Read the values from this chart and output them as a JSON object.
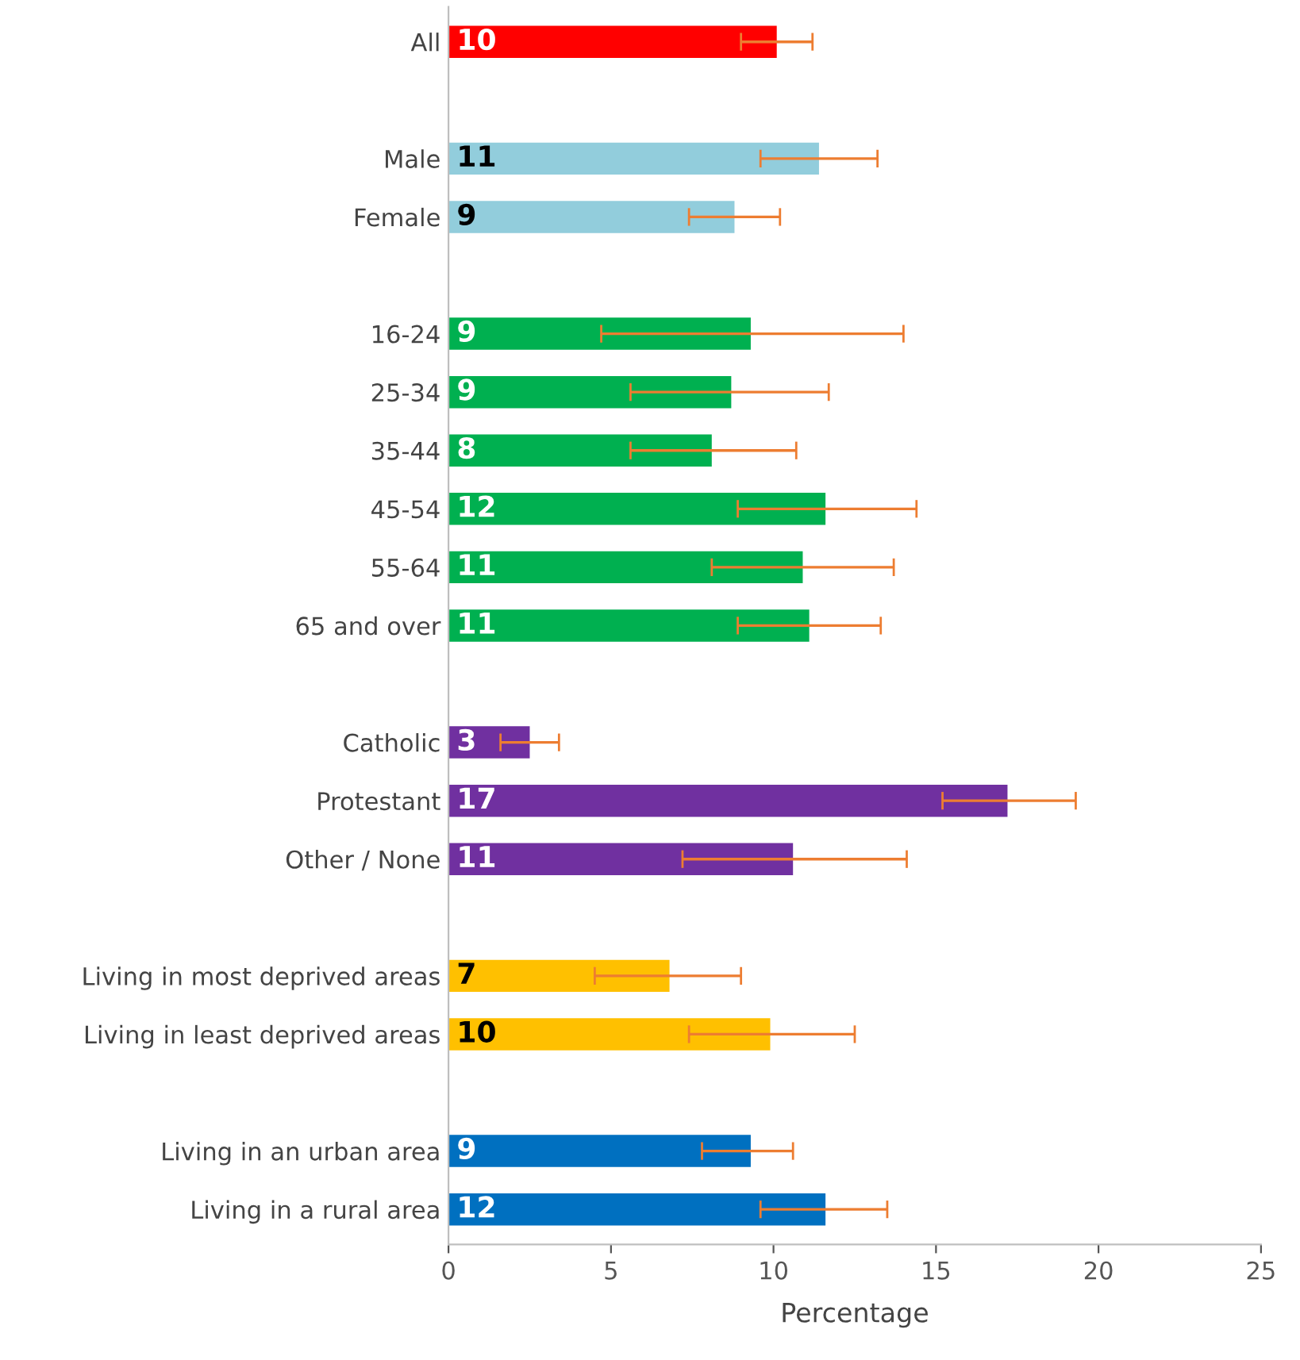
{
  "chart_data": {
    "type": "bar",
    "orientation": "horizontal",
    "xlabel": "Percentage",
    "categories": [
      "All",
      null,
      "Male",
      "Female",
      null,
      "16-24",
      "25-34",
      "35-44",
      "45-54",
      "55-64",
      "65 and over",
      null,
      "Catholic",
      "Protestant",
      "Other / None",
      null,
      "Living in most deprived areas",
      "Living in least deprived areas",
      null,
      "Living in an urban area",
      "Living in a rural area"
    ],
    "values": [
      10.1,
      null,
      11.4,
      8.8,
      null,
      9.3,
      8.7,
      8.1,
      11.6,
      10.9,
      11.1,
      null,
      2.5,
      17.2,
      10.6,
      null,
      6.8,
      9.9,
      null,
      9.3,
      11.6
    ],
    "value_labels": [
      "10",
      null,
      "11",
      "9",
      null,
      "9",
      "9",
      "8",
      "12",
      "11",
      "11",
      null,
      "3",
      "17",
      "11",
      null,
      "7",
      "10",
      null,
      "9",
      "12"
    ],
    "errors": [
      [
        9.0,
        11.2
      ],
      null,
      [
        9.6,
        13.2
      ],
      [
        7.4,
        10.2
      ],
      null,
      [
        4.7,
        14.0
      ],
      [
        5.6,
        11.7
      ],
      [
        5.6,
        10.7
      ],
      [
        8.9,
        14.4
      ],
      [
        8.1,
        13.7
      ],
      [
        8.9,
        13.3
      ],
      null,
      [
        1.6,
        3.4
      ],
      [
        15.2,
        19.3
      ],
      [
        7.2,
        14.1
      ],
      null,
      [
        4.5,
        9.0
      ],
      [
        7.4,
        12.5
      ],
      null,
      [
        7.8,
        10.6
      ],
      [
        9.6,
        13.5
      ]
    ],
    "colors": [
      "#ff0000",
      null,
      "#92cddc",
      "#92cddc",
      null,
      "#00b050",
      "#00b050",
      "#00b050",
      "#00b050",
      "#00b050",
      "#00b050",
      null,
      "#7030a0",
      "#7030a0",
      "#7030a0",
      null,
      "#ffc000",
      "#ffc000",
      null,
      "#0070c0",
      "#0070c0"
    ],
    "xlim": [
      0,
      25
    ],
    "xticks": [
      0,
      5,
      10,
      15,
      20,
      25
    ],
    "grid": false,
    "legend": false
  }
}
